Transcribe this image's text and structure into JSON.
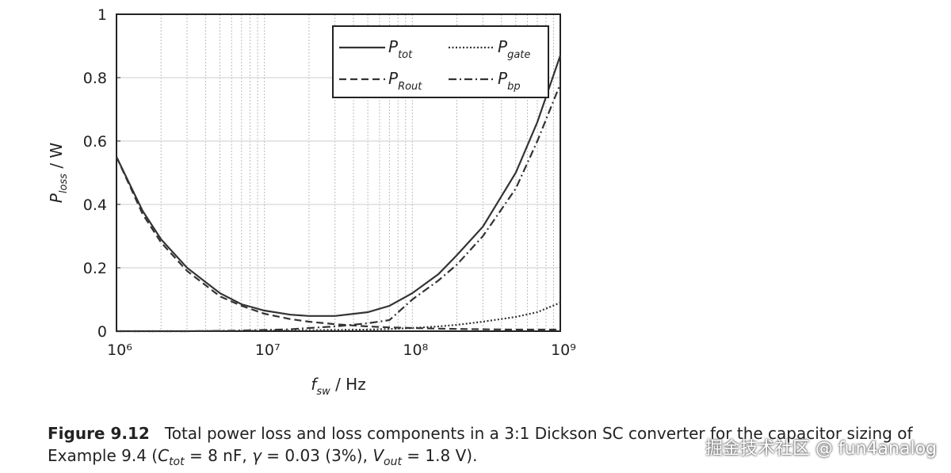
{
  "chart_data": {
    "type": "line",
    "x_label": {
      "main": "f",
      "sub": "sw",
      "rest": " / Hz"
    },
    "y_label": {
      "main": "P",
      "sub": "loss",
      "rest": " / W"
    },
    "x": [
      1000000,
      1500000,
      2000000,
      3000000,
      5000000,
      7000000,
      10000000,
      15000000,
      20000000,
      30000000,
      50000000,
      70000000,
      100000000,
      150000000,
      200000000,
      300000000,
      500000000,
      700000000,
      1000000000
    ],
    "series": [
      {
        "name": "P",
        "sub": "tot",
        "color": "#333333",
        "line_style": "solid",
        "values": [
          0.55,
          0.38,
          0.29,
          0.2,
          0.12,
          0.085,
          0.065,
          0.052,
          0.048,
          0.048,
          0.06,
          0.08,
          0.12,
          0.18,
          0.24,
          0.33,
          0.5,
          0.66,
          0.87
        ]
      },
      {
        "name": "P",
        "sub": "gate",
        "color": "#333333",
        "line_style": "dotted",
        "values": [
          0,
          0,
          0,
          0,
          0.001,
          0.001,
          0.002,
          0.002,
          0.003,
          0.004,
          0.005,
          0.007,
          0.01,
          0.015,
          0.02,
          0.03,
          0.045,
          0.06,
          0.09
        ]
      },
      {
        "name": "P",
        "sub": "Rout",
        "color": "#333333",
        "line_style": "dashed",
        "values": [
          0.55,
          0.37,
          0.28,
          0.19,
          0.11,
          0.08,
          0.055,
          0.038,
          0.03,
          0.022,
          0.015,
          0.012,
          0.01,
          0.008,
          0.007,
          0.006,
          0.005,
          0.005,
          0.005
        ]
      },
      {
        "name": "P",
        "sub": "bp",
        "color": "#333333",
        "line_style": "dashdot",
        "values": [
          0,
          0,
          0,
          0,
          0.001,
          0.002,
          0.004,
          0.006,
          0.01,
          0.015,
          0.025,
          0.035,
          0.1,
          0.16,
          0.21,
          0.3,
          0.45,
          0.6,
          0.78
        ]
      }
    ],
    "xlim": [
      1000000,
      1000000000
    ],
    "x_log": true,
    "xticks": [
      {
        "value": 1000000,
        "label": "10⁶"
      },
      {
        "value": 10000000,
        "label": "10⁷"
      },
      {
        "value": 100000000,
        "label": "10⁸"
      },
      {
        "value": 1000000000,
        "label": "10⁹"
      }
    ],
    "xminorgrid": [
      2000000,
      3000000,
      4000000,
      5000000,
      6000000,
      7000000,
      8000000,
      9000000,
      20000000,
      30000000,
      40000000,
      50000000,
      60000000,
      70000000,
      80000000,
      90000000,
      200000000,
      300000000,
      400000000,
      500000000,
      600000000,
      700000000,
      800000000,
      900000000
    ],
    "ylim": [
      0,
      1
    ],
    "yticks": [
      0,
      0.2,
      0.4,
      0.6,
      0.8,
      1
    ],
    "grid": true,
    "legend_position": "upper right"
  },
  "caption": {
    "label": "Figure 9.12",
    "parts": [
      "Total power loss and loss components in a 3:1 Dickson SC converter for the capacitor sizing of",
      "Example 9.4 (",
      "C",
      "tot",
      " = 8 nF, ",
      "γ",
      " = 0.03 (3%), ",
      "V",
      "out",
      " = 1.8 V)."
    ]
  },
  "watermark": "掘金技术社区 @ fun4analog"
}
